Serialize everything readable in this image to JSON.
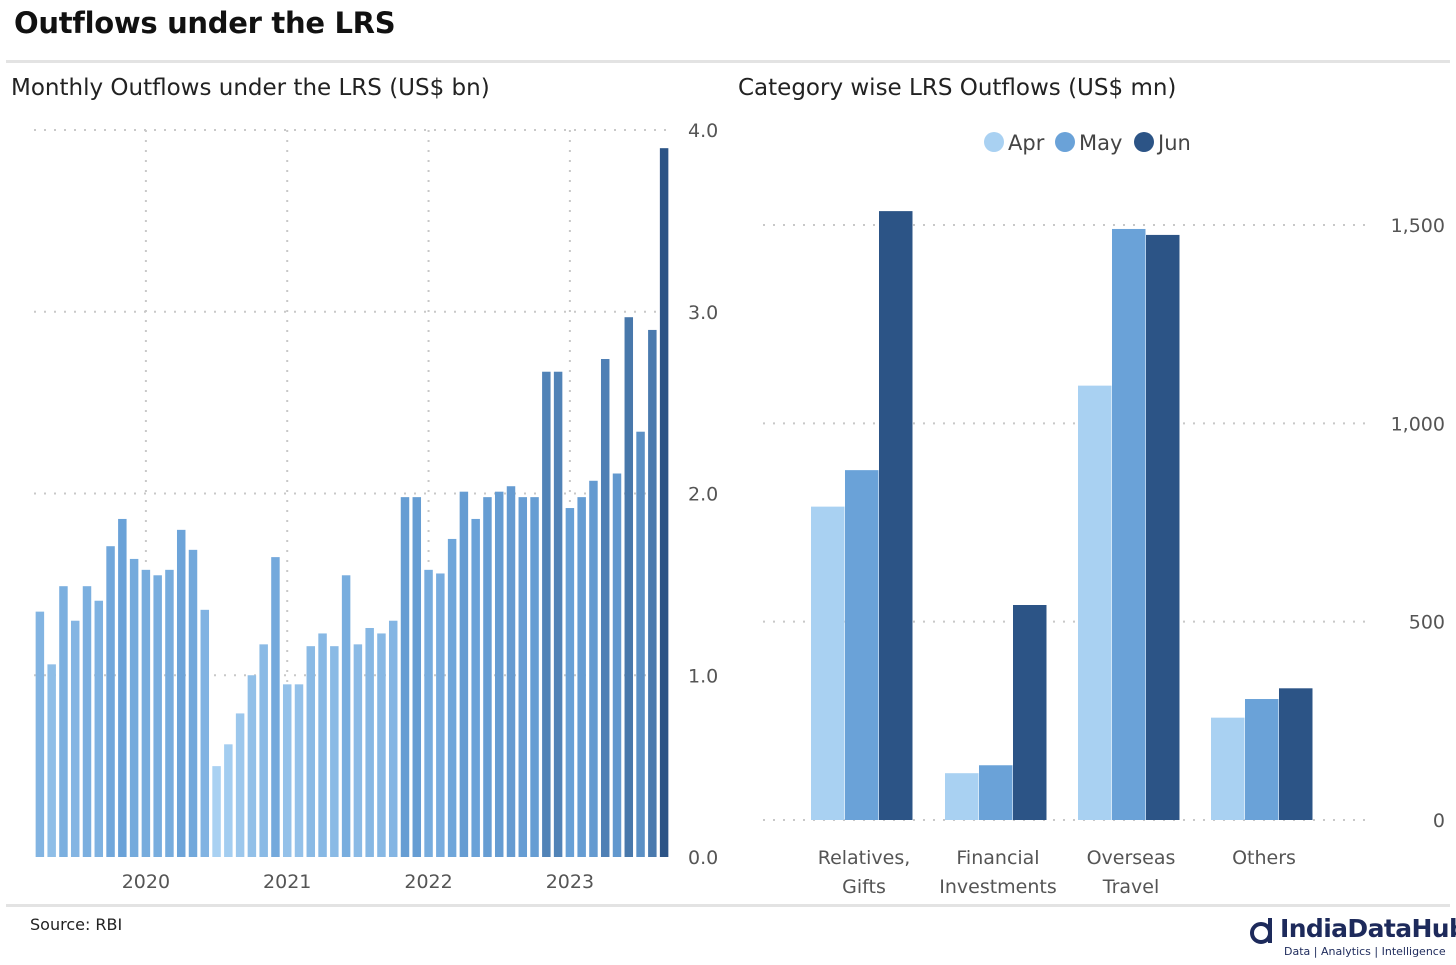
{
  "title": "Outflows under the LRS",
  "source": "Source: RBI",
  "logo": {
    "name": "IndiaDataHub",
    "tagline": "Data | Analytics | Intelligence"
  },
  "chart_data": [
    {
      "type": "bar",
      "title": "Monthly Outflows under the LRS (US$ bn)",
      "xlabel": "",
      "ylabel": "",
      "ylim": [
        0,
        4
      ],
      "yticks": [
        "0.0",
        "1.0",
        "2.0",
        "3.0",
        "4.0"
      ],
      "xticks": [
        "2020",
        "2021",
        "2022",
        "2023"
      ],
      "grid": true,
      "colors": {
        "light": "#a9d1f2",
        "mid": "#6aa2d8",
        "dark": "#2c5486"
      },
      "values": [
        1.35,
        1.06,
        1.49,
        1.3,
        1.49,
        1.41,
        1.71,
        1.86,
        1.64,
        1.58,
        1.55,
        1.58,
        1.8,
        1.69,
        1.36,
        0.5,
        0.62,
        0.79,
        1.0,
        1.17,
        1.65,
        0.95,
        0.95,
        1.16,
        1.23,
        1.16,
        1.55,
        1.17,
        1.26,
        1.23,
        1.3,
        1.98,
        1.98,
        1.58,
        1.56,
        1.75,
        2.01,
        1.86,
        1.98,
        2.01,
        2.04,
        1.98,
        1.98,
        2.67,
        2.67,
        1.92,
        1.98,
        2.07,
        2.74,
        2.11,
        2.97,
        2.34,
        2.9,
        3.9
      ]
    },
    {
      "type": "bar",
      "title": "Category wise LRS Outflows (US$ mn)",
      "xlabel": "",
      "ylabel": "",
      "ylim": [
        0,
        1700
      ],
      "yticks": [
        "0",
        "500",
        "1,000",
        "1,500"
      ],
      "legend": "top",
      "grid": true,
      "categories": [
        [
          "Relatives,",
          "Gifts"
        ],
        [
          "Financial",
          "Investments"
        ],
        [
          "Overseas",
          "Travel"
        ],
        [
          "Others"
        ]
      ],
      "series": [
        {
          "name": "Apr",
          "color": "#a9d1f2",
          "values": [
            790,
            118,
            1095,
            258
          ]
        },
        {
          "name": "May",
          "color": "#6aa2d8",
          "values": [
            882,
            138,
            1490,
            305
          ]
        },
        {
          "name": "Jun",
          "color": "#2c5486",
          "values": [
            1535,
            542,
            1475,
            332
          ]
        }
      ]
    }
  ]
}
